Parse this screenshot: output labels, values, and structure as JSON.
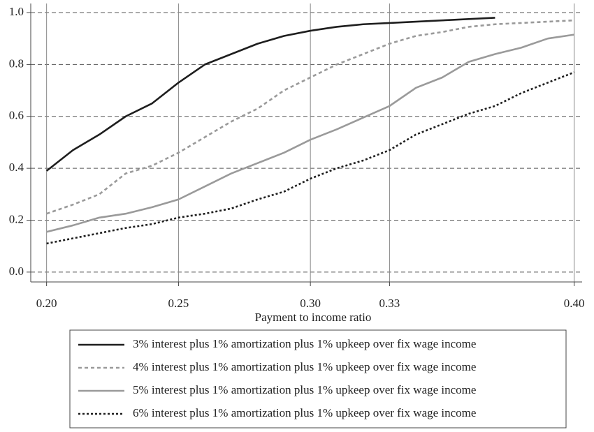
{
  "chart_data": {
    "type": "line",
    "xlabel": "Payment to income ratio",
    "x": [
      0.2,
      0.21,
      0.22,
      0.23,
      0.24,
      0.25,
      0.26,
      0.27,
      0.28,
      0.29,
      0.3,
      0.31,
      0.32,
      0.33,
      0.34,
      0.35,
      0.36,
      0.37,
      0.38,
      0.39,
      0.4
    ],
    "series": [
      {
        "name": "3% interest plus 1% amortization plus 1% upkeep over fix wage income",
        "color": "#1e1e1e",
        "dash": "solid",
        "values": [
          0.39,
          0.47,
          0.53,
          0.6,
          0.65,
          0.73,
          0.8,
          0.84,
          0.88,
          0.91,
          0.93,
          0.945,
          0.955,
          0.96,
          0.965,
          0.97,
          0.975,
          0.98,
          null,
          null,
          null
        ]
      },
      {
        "name": "4% interest plus 1% amortization plus 1% upkeep over fix wage income",
        "color": "#9a9a9a",
        "dash": "dashed",
        "values": [
          0.225,
          0.26,
          0.3,
          0.38,
          0.41,
          0.46,
          0.52,
          0.58,
          0.63,
          0.7,
          0.75,
          0.8,
          0.84,
          0.88,
          0.91,
          0.925,
          0.945,
          0.955,
          0.96,
          0.965,
          0.97
        ]
      },
      {
        "name": "5% interest plus 1% amortization plus 1% upkeep over fix wage income",
        "color": "#9a9a9a",
        "dash": "solid",
        "values": [
          0.155,
          0.18,
          0.21,
          0.225,
          0.25,
          0.28,
          0.33,
          0.38,
          0.42,
          0.46,
          0.51,
          0.55,
          0.595,
          0.64,
          0.71,
          0.75,
          0.81,
          0.84,
          0.865,
          0.9,
          0.915
        ]
      },
      {
        "name": "6% interest plus 1% amortization plus 1% upkeep over fix wage income",
        "color": "#1e1e1e",
        "dash": "dotted",
        "values": [
          0.11,
          0.13,
          0.15,
          0.17,
          0.185,
          0.21,
          0.225,
          0.245,
          0.28,
          0.31,
          0.36,
          0.4,
          0.43,
          0.47,
          0.53,
          0.57,
          0.61,
          0.64,
          0.69,
          0.73,
          0.77
        ]
      }
    ],
    "xlim": [
      0.194,
      0.403
    ],
    "ylim": [
      -0.038,
      1.035
    ],
    "xticks": [
      {
        "value": 0.2,
        "label": "0.20"
      },
      {
        "value": 0.25,
        "label": "0.25"
      },
      {
        "value": 0.3,
        "label": "0.30"
      },
      {
        "value": 0.33,
        "label": "0.33"
      },
      {
        "value": 0.4,
        "label": "0.40"
      }
    ],
    "yticks": [
      {
        "value": 0,
        "label": "0.0"
      },
      {
        "value": 0.2,
        "label": "0.2"
      },
      {
        "value": 0.4,
        "label": "0.4"
      },
      {
        "value": 0.6,
        "label": "0.6"
      },
      {
        "value": 0.8,
        "label": "0.8"
      },
      {
        "value": 1.0,
        "label": "1.0"
      }
    ],
    "grid": true,
    "legend": "bottom"
  }
}
